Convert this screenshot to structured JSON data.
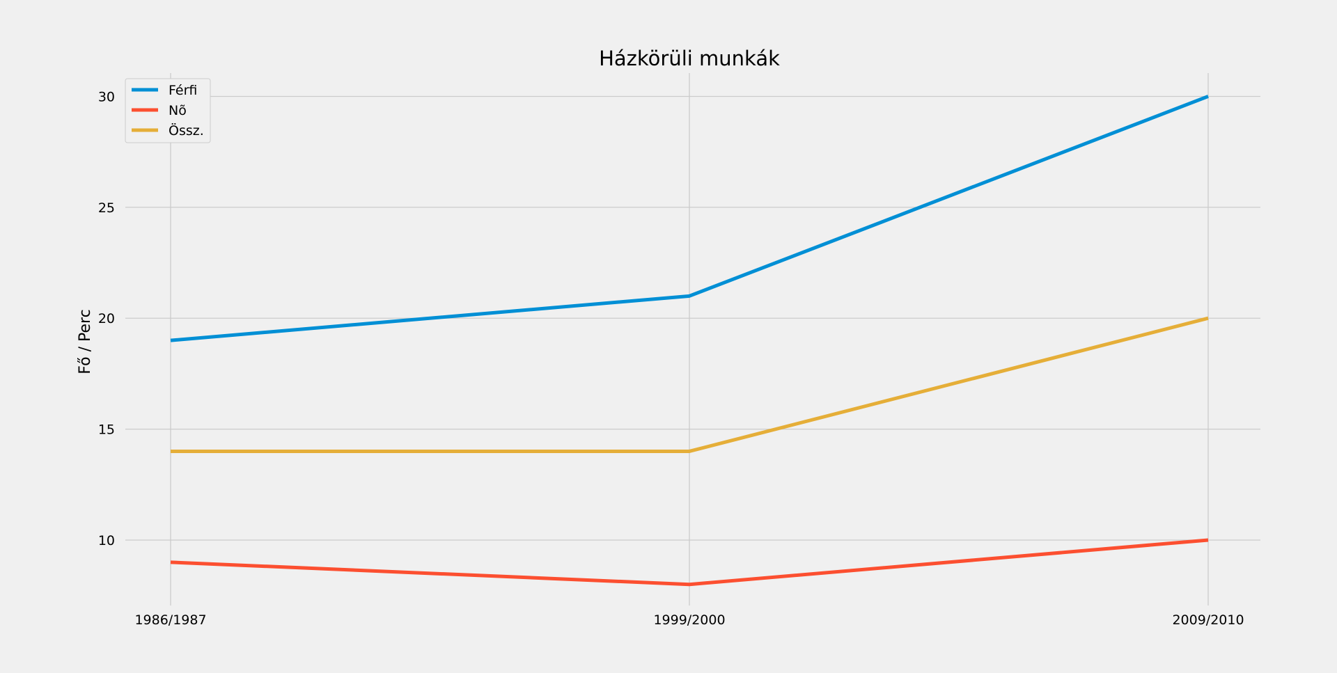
{
  "chart_data": {
    "type": "line",
    "title": "Házkörüli munkák",
    "xlabel": "",
    "ylabel": "Fő / Perc",
    "categories": [
      "1986/1987",
      "1999/2000",
      "2009/2010"
    ],
    "series": [
      {
        "name": "Férfi",
        "values": [
          19,
          21,
          30
        ],
        "color": "#008fd5"
      },
      {
        "name": "Nõ",
        "values": [
          9,
          8,
          10
        ],
        "color": "#fc4f30"
      },
      {
        "name": "Össz.",
        "values": [
          14,
          14,
          20
        ],
        "color": "#e5ae38"
      }
    ],
    "yticks": [
      10,
      15,
      20,
      25,
      30
    ],
    "ylim": [
      7.05,
      31.05
    ],
    "grid": true,
    "legend_position": "top-left"
  }
}
